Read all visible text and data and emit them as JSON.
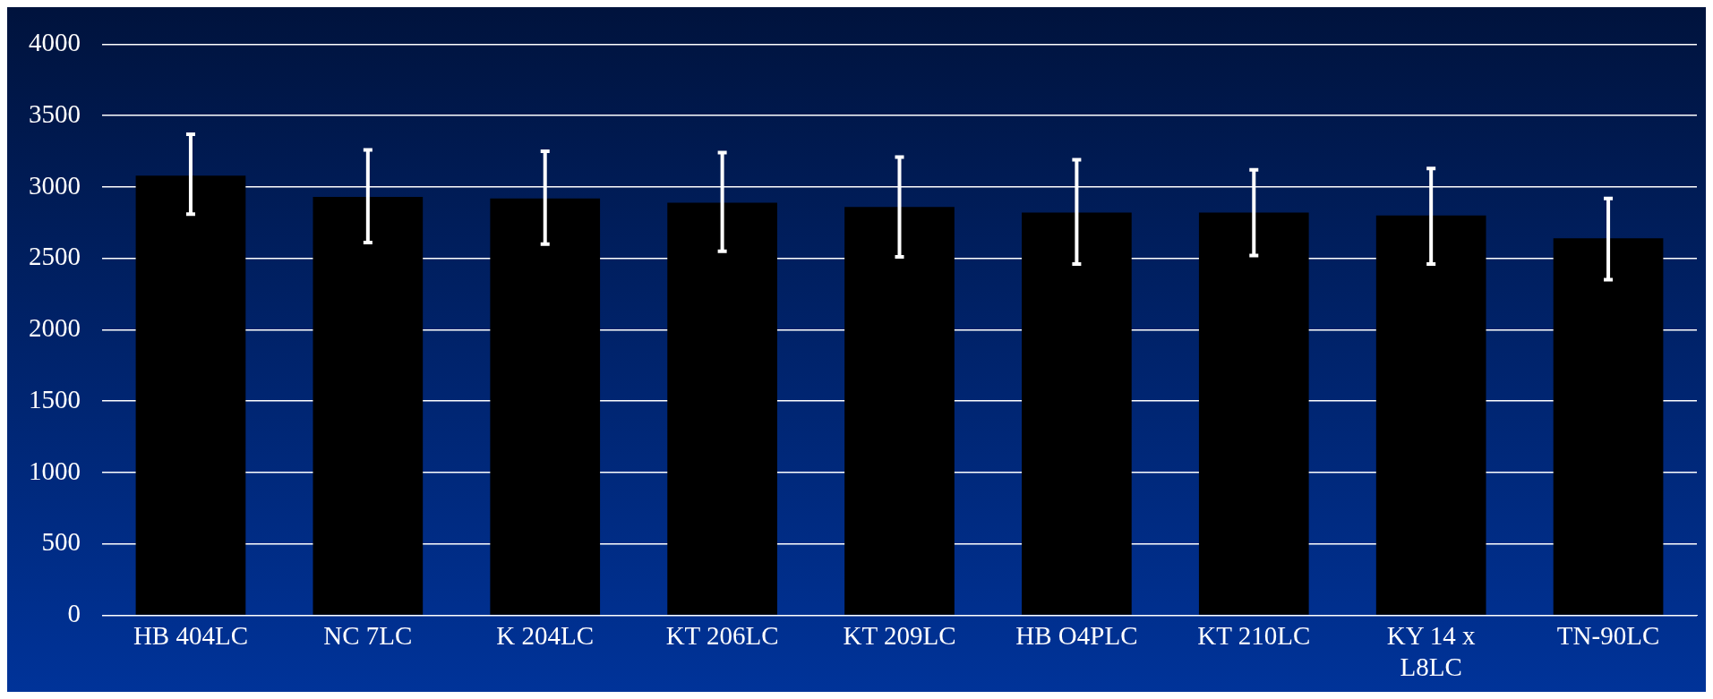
{
  "chart_data": {
    "type": "bar",
    "categories": [
      "HB 404LC",
      "NC 7LC",
      "K 204LC",
      "KT 206LC",
      "KT 209LC",
      "HB O4PLC",
      "KT 210LC",
      "KY 14 x L8LC",
      "TN-90LC"
    ],
    "values": [
      3080,
      2930,
      2920,
      2890,
      2860,
      2820,
      2820,
      2800,
      2640
    ],
    "errors": [
      [
        2810,
        3370
      ],
      [
        2610,
        3260
      ],
      [
        2600,
        3250
      ],
      [
        2550,
        3240
      ],
      [
        2510,
        3210
      ],
      [
        2460,
        3190
      ],
      [
        2520,
        3120
      ],
      [
        2460,
        3130
      ],
      [
        2350,
        2920
      ]
    ],
    "color": "#000000",
    "ylim": [
      0,
      4000
    ],
    "yticks": [
      0,
      500,
      1000,
      1500,
      2000,
      2500,
      3000,
      3500,
      4000
    ],
    "grid": "y"
  }
}
